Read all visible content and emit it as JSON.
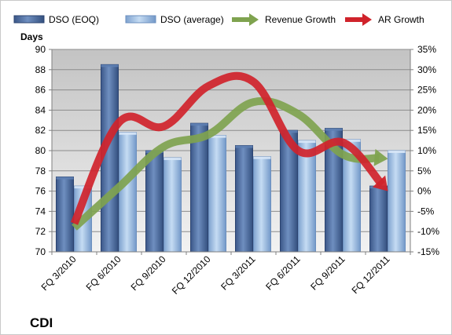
{
  "chart_data": {
    "type": "bar",
    "ylabel": "Days",
    "ylim": [
      70,
      90
    ],
    "y2lim": [
      -15,
      35
    ],
    "y_ticks": [
      "70",
      "72",
      "74",
      "76",
      "78",
      "80",
      "82",
      "84",
      "86",
      "88",
      "90"
    ],
    "y2_ticks": [
      "-15%",
      "-10%",
      "-5%",
      "0%",
      "5%",
      "10%",
      "15%",
      "20%",
      "25%",
      "30%",
      "35%"
    ],
    "categories": [
      "FQ 3/2010",
      "FQ 6/2010",
      "FQ 9/2010",
      "FQ 12/2010",
      "FQ 3/2011",
      "FQ 6/2011",
      "FQ 9/2011",
      "FQ 12/2011"
    ],
    "series": [
      {
        "name": "DSO (EOQ)",
        "type": "bar",
        "axis": "left",
        "values": [
          77.4,
          88.5,
          80.0,
          82.7,
          80.5,
          82.0,
          82.2,
          76.5
        ],
        "color": "#4e6d9c"
      },
      {
        "name": "DSO (average)",
        "type": "bar",
        "axis": "left",
        "values": [
          76.5,
          81.8,
          79.3,
          81.5,
          79.4,
          81.0,
          81.1,
          80.0
        ],
        "color": "#97b6dc"
      },
      {
        "name": "Revenue Growth",
        "type": "line",
        "axis": "right",
        "values": [
          -9,
          1,
          11,
          14,
          22,
          19,
          9,
          8
        ],
        "color": "#7fa34f"
      },
      {
        "name": "AR Growth",
        "type": "line",
        "axis": "right",
        "values": [
          -8,
          17,
          16,
          26,
          27,
          10,
          12,
          0
        ],
        "color": "#d0232b"
      }
    ],
    "legend_position": "top",
    "grid": true
  },
  "brand_label": "CDI"
}
